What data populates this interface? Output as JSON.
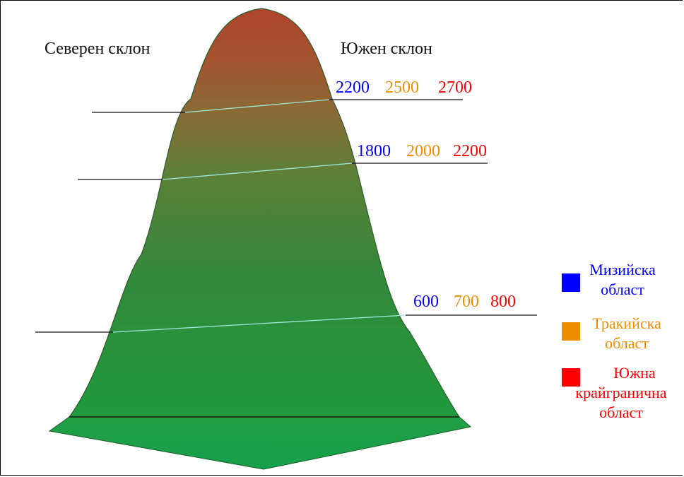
{
  "slopes": {
    "north": "Северен склон",
    "south": "Южен склон"
  },
  "levels": [
    {
      "values": [
        "2200",
        "2500",
        "2700"
      ]
    },
    {
      "values": [
        "1800",
        "2000",
        "2200"
      ]
    },
    {
      "values": [
        "600",
        "700",
        "800"
      ]
    }
  ],
  "legend": [
    {
      "line1": "Мизийска",
      "line2": "област",
      "color": "#0000ff"
    },
    {
      "line1": "Тракийска",
      "line2": "област",
      "color": "#f08c00"
    },
    {
      "line1": "Южна",
      "line2": "крайгранична",
      "line3": "област",
      "color": "#ff0000"
    }
  ],
  "colors": {
    "blue": "#0000ff",
    "orange": "#f08c00",
    "red": "#ff0000",
    "mountain_top": "#b0462a",
    "mountain_mid": "#4f8f3a",
    "mountain_base": "#1f9a3c",
    "zone_line": "#9ee8e0"
  }
}
